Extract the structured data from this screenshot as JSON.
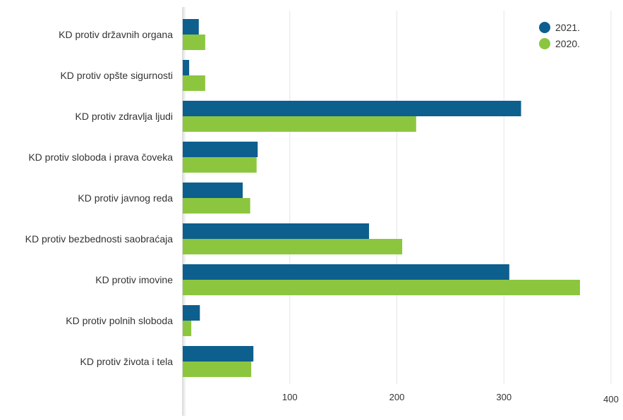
{
  "chart_data": {
    "type": "bar",
    "orientation": "horizontal",
    "categories": [
      "KD protiv državnih organa",
      "KD protiv opšte sigurnosti",
      "KD protiv zdravlja ljudi",
      "KD protiv sloboda i prava čoveka",
      "KD protiv javnog reda",
      "KD protiv bezbednosti saobraćaja",
      "KD protiv imovine",
      "KD protiv polnih sloboda",
      "KD protiv života i tela"
    ],
    "series": [
      {
        "name": "2021.",
        "color": "#0d5f8e",
        "values": [
          15,
          6,
          316,
          70,
          56,
          174,
          305,
          16,
          66
        ]
      },
      {
        "name": "2020.",
        "color": "#8cc63f",
        "values": [
          21,
          21,
          218,
          69,
          63,
          205,
          371,
          8,
          64
        ]
      }
    ],
    "xlim": [
      0,
      400
    ],
    "xticks": [
      "100",
      "200",
      "300",
      "400"
    ],
    "xtick_values": [
      100,
      200,
      300,
      400
    ],
    "grid": true,
    "legend_position": "top-right",
    "title": "",
    "xlabel": "",
    "ylabel": ""
  }
}
